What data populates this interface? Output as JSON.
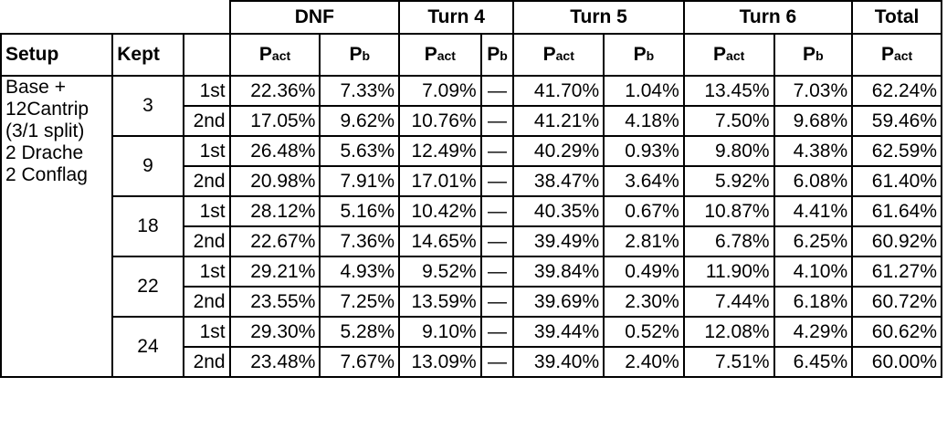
{
  "header": {
    "groups": [
      "DNF",
      "Turn 4",
      "Turn 5",
      "Turn 6",
      "Total"
    ],
    "setup_label": "Setup",
    "kept_label": "Kept",
    "p_main": "P",
    "sub_act": "act",
    "sub_b": "b"
  },
  "setup_lines": [
    "Base +",
    "12Cantrip",
    "(3/1 split)",
    "2 Drache",
    "2 Conflag"
  ],
  "rows": [
    {
      "kept": "3",
      "order": "1st",
      "vals": [
        "22.36%",
        "7.33%",
        "7.09%",
        "—",
        "41.70%",
        "1.04%",
        "13.45%",
        "7.03%",
        "62.24%"
      ]
    },
    {
      "kept": "3",
      "order": "2nd",
      "vals": [
        "17.05%",
        "9.62%",
        "10.76%",
        "—",
        "41.21%",
        "4.18%",
        "7.50%",
        "9.68%",
        "59.46%"
      ]
    },
    {
      "kept": "9",
      "order": "1st",
      "vals": [
        "26.48%",
        "5.63%",
        "12.49%",
        "—",
        "40.29%",
        "0.93%",
        "9.80%",
        "4.38%",
        "62.59%"
      ]
    },
    {
      "kept": "9",
      "order": "2nd",
      "vals": [
        "20.98%",
        "7.91%",
        "17.01%",
        "—",
        "38.47%",
        "3.64%",
        "5.92%",
        "6.08%",
        "61.40%"
      ]
    },
    {
      "kept": "18",
      "order": "1st",
      "vals": [
        "28.12%",
        "5.16%",
        "10.42%",
        "—",
        "40.35%",
        "0.67%",
        "10.87%",
        "4.41%",
        "61.64%"
      ]
    },
    {
      "kept": "18",
      "order": "2nd",
      "vals": [
        "22.67%",
        "7.36%",
        "14.65%",
        "—",
        "39.49%",
        "2.81%",
        "6.78%",
        "6.25%",
        "60.92%"
      ]
    },
    {
      "kept": "22",
      "order": "1st",
      "vals": [
        "29.21%",
        "4.93%",
        "9.52%",
        "—",
        "39.84%",
        "0.49%",
        "11.90%",
        "4.10%",
        "61.27%"
      ]
    },
    {
      "kept": "22",
      "order": "2nd",
      "vals": [
        "23.55%",
        "7.25%",
        "13.59%",
        "—",
        "39.69%",
        "2.30%",
        "7.44%",
        "6.18%",
        "60.72%"
      ]
    },
    {
      "kept": "24",
      "order": "1st",
      "vals": [
        "29.30%",
        "5.28%",
        "9.10%",
        "—",
        "39.44%",
        "0.52%",
        "12.08%",
        "4.29%",
        "60.62%"
      ]
    },
    {
      "kept": "24",
      "order": "2nd",
      "vals": [
        "23.48%",
        "7.67%",
        "13.09%",
        "—",
        "39.40%",
        "2.40%",
        "7.51%",
        "6.45%",
        "60.00%"
      ]
    }
  ]
}
